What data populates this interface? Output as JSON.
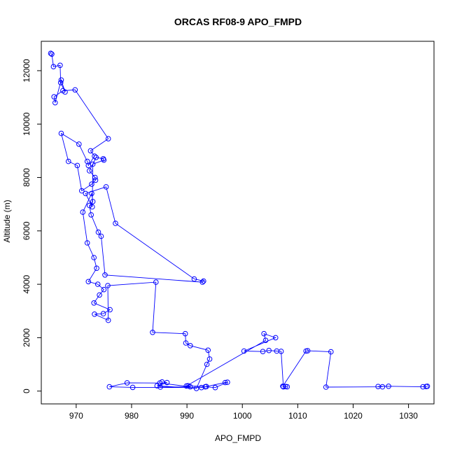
{
  "chart_data": {
    "type": "line",
    "title": "ORCAS RF08-9 APO_FMPD",
    "xlabel": "APO_FMPD",
    "ylabel": "Altitude (m)",
    "xlim": [
      963.7,
      1034.6
    ],
    "ylim": [
      -480,
      13100
    ],
    "x_ticks": [
      970,
      980,
      990,
      1000,
      1010,
      1020,
      1030
    ],
    "x_tick_labels": [
      "970",
      "980",
      "990",
      "1000",
      "1010",
      "1020",
      "1030"
    ],
    "y_ticks": [
      0,
      2000,
      4000,
      6000,
      8000,
      10000,
      12000
    ],
    "y_tick_labels": [
      "0",
      "2000",
      "4000",
      "6000",
      "8000",
      "10000",
      "12000"
    ],
    "grid": false,
    "legend": "none",
    "series": [
      {
        "color": "#0000ff",
        "marker": "open-circle",
        "x": [
          965.4,
          965.6,
          965.9,
          967.1,
          967.2,
          968.0,
          967.3,
          966.2,
          966.0,
          967.6,
          969.8,
          975.8,
          972.6,
          973.3,
          972.2,
          972.0,
          970.5,
          967.3,
          968.6,
          970.2,
          971.0,
          972.8,
          973.5,
          973.4,
          972.4,
          973.6,
          974.9,
          975.0,
          973.0,
          972.9,
          971.7,
          975.4,
          977.1,
          991.3,
          993.0,
          992.8,
          975.2,
          974.5,
          974.0,
          972.7,
          972.4,
          973.0,
          972.8,
          971.2,
          972.0,
          973.2,
          973.7,
          972.2,
          973.9,
          975.0,
          974.2,
          973.2,
          976.1,
          974.9,
          973.3,
          975.8,
          975.7,
          984.4,
          983.8,
          989.7,
          989.8,
          990.6,
          993.8,
          994.1,
          993.6,
          991.7,
          984.6,
          986.4,
          985.5,
          985.2,
          990.6,
          985.1,
          979.2,
          976.0,
          980.2,
          992.6,
          993.5,
          996.9,
          997.3,
          995.1,
          993.3,
          990.2,
          989.9,
          1004.2,
          1003.9,
          1006.0,
          1000.3,
          1003.7,
          1004.8,
          1006.2,
          1007.0,
          1007.4,
          1007.8,
          1008.1,
          1007.3,
          1011.5,
          1011.8,
          1016.0,
          1015.1,
          1025.3,
          1024.5,
          1026.4,
          1032.6,
          1033.2,
          1033.4
        ],
        "y": [
          12650,
          12620,
          12150,
          12200,
          11550,
          11200,
          11650,
          10800,
          11020,
          11250,
          11280,
          9450,
          9000,
          8800,
          8450,
          8600,
          9250,
          9650,
          8600,
          8450,
          7500,
          7750,
          7900,
          8000,
          8250,
          8750,
          8700,
          8650,
          8500,
          6900,
          7400,
          7650,
          6280,
          4200,
          4120,
          4080,
          4350,
          5800,
          5950,
          6600,
          6950,
          7100,
          7400,
          6700,
          5550,
          5000,
          4600,
          4100,
          4000,
          3800,
          3600,
          3300,
          3050,
          2900,
          2880,
          2650,
          3950,
          4080,
          2200,
          2150,
          1800,
          1700,
          1530,
          1200,
          1000,
          100,
          200,
          320,
          340,
          150,
          160,
          300,
          310,
          160,
          140,
          130,
          170,
          320,
          330,
          130,
          160,
          200,
          190,
          1900,
          2150,
          2000,
          1500,
          1480,
          1520,
          1500,
          1490,
          160,
          170,
          160,
          180,
          1500,
          1510,
          1470,
          150,
          160,
          170,
          180,
          160,
          170,
          180
        ]
      }
    ]
  }
}
